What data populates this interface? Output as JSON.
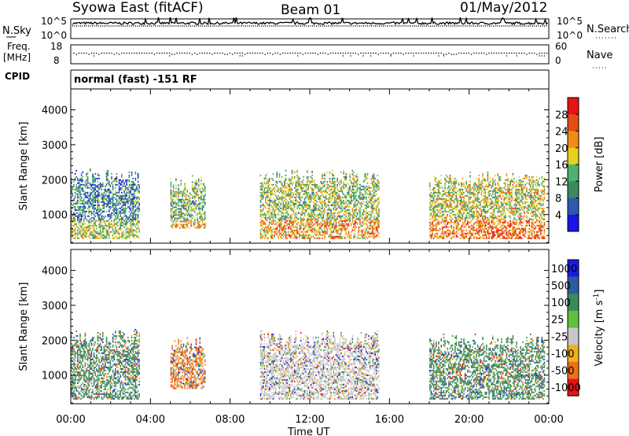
{
  "header": {
    "station": "Syowa East (fitACF)",
    "beam": "Beam 01",
    "date": "01/May/2012"
  },
  "strips": {
    "nsky_label": "N.Sky",
    "nsky_ticks": [
      "10^5",
      "10^0"
    ],
    "nsearch_label": "N.Search",
    "nsearch_ticks": [
      "10^5",
      "10^0"
    ],
    "freq_label": "Freq.",
    "freq_unit": "[MHz]",
    "freq_ticks": [
      "18",
      "8"
    ],
    "nave_label": "Nave",
    "nave_ticks": [
      "60",
      "0"
    ],
    "cpid_label": "CPID",
    "cpid_text": "normal (fast) -151 RF"
  },
  "x_axis": {
    "label": "Time UT",
    "ticks": [
      "00:00",
      "04:00",
      "08:00",
      "12:00",
      "16:00",
      "20:00",
      "00:00"
    ]
  },
  "chart_data": [
    {
      "type": "heatmap",
      "panel": "power",
      "ylabel": "Slant Range [km]",
      "ylim": [
        180,
        4600
      ],
      "yticks": [
        "1000",
        "2000",
        "3000",
        "4000"
      ],
      "xlim_hours": [
        0,
        24
      ],
      "colorbar": {
        "label": "Power [dB]",
        "ticks": [
          "4",
          "8",
          "12",
          "16",
          "20",
          "24",
          "28"
        ],
        "colors": [
          "#1a14e6",
          "#2c5ab0",
          "#3a8a5c",
          "#4cb36e",
          "#e6d21e",
          "#f08c14",
          "#e64b14",
          "#e61414"
        ]
      },
      "echo_regions": [
        {
          "t0": 0.0,
          "t1": 3.5,
          "r0": 300,
          "r1": 2300,
          "value": 12
        },
        {
          "t0": 5.0,
          "t1": 6.8,
          "r0": 600,
          "r1": 2100,
          "value": 16
        },
        {
          "t0": 9.5,
          "t1": 15.5,
          "r0": 300,
          "r1": 2300,
          "value": 18
        },
        {
          "t0": 18.0,
          "t1": 23.8,
          "r0": 300,
          "r1": 2200,
          "value": 20
        }
      ]
    },
    {
      "type": "heatmap",
      "panel": "velocity",
      "ylabel": "Slant Range [km]",
      "ylim": [
        180,
        4600
      ],
      "yticks": [
        "1000",
        "2000",
        "3000",
        "4000"
      ],
      "xlim_hours": [
        0,
        24
      ],
      "colorbar": {
        "label": "Velocity [m s",
        "label_superscript": "-1",
        "label_close": "]",
        "ticks": [
          "1000",
          "500",
          "100",
          "25",
          "-25",
          "-100",
          "-500",
          "-1000"
        ],
        "colors": [
          "#1a1ae6",
          "#2c5aa0",
          "#3a8a5c",
          "#60c040",
          "#c8c8c8",
          "#f0b01e",
          "#f07014",
          "#e61414"
        ]
      },
      "echo_regions": [
        {
          "t0": 0.0,
          "t1": 3.5,
          "r0": 300,
          "r1": 2300,
          "value": 100
        },
        {
          "t0": 5.0,
          "t1": 6.8,
          "r0": 600,
          "r1": 2100,
          "value": -500
        },
        {
          "t0": 9.5,
          "t1": 15.5,
          "r0": 300,
          "r1": 2300,
          "value": 0
        },
        {
          "t0": 18.0,
          "t1": 23.8,
          "r0": 300,
          "r1": 2200,
          "value": 100
        }
      ]
    }
  ]
}
